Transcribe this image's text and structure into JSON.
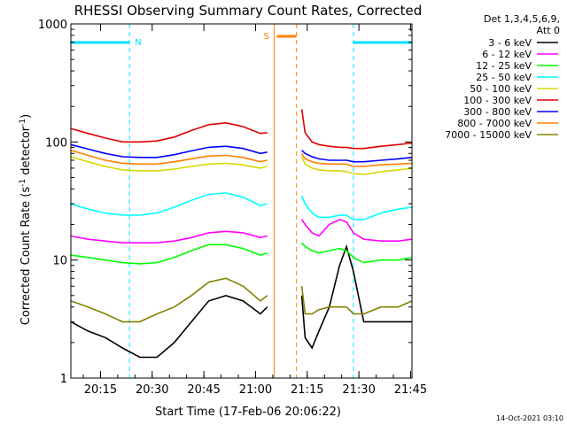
{
  "chart_data": {
    "type": "line",
    "title": "RHESSI Observing Summary Count Rates, Corrected",
    "xlabel": "Start Time (17-Feb-06 20:06:22)",
    "ylabel_parts": [
      "Corrected Count Rate (s",
      "-1",
      " detector",
      "-1",
      ")"
    ],
    "yscale": "log",
    "ylim": [
      1,
      1000
    ],
    "xlim_minutes_after_start": [
      0,
      99
    ],
    "x_tick_labels": [
      "20:15",
      "20:30",
      "20:45",
      "21:00",
      "21:15",
      "21:30",
      "21:45"
    ],
    "x_tick_minutes": [
      8.6,
      23.6,
      38.6,
      53.6,
      68.6,
      83.6,
      98.6
    ],
    "y_tick_labels": [
      "1",
      "10",
      "100",
      "1000"
    ],
    "y_tick_values": [
      1,
      10,
      100,
      1000
    ],
    "legend_header": [
      "Det 1,3,4,5,6,9,",
      "Att 0"
    ],
    "legend_position": "top-right",
    "timestamp": "14-Oct-2021 03:10",
    "annotations": [
      {
        "label": "N",
        "kind": "night",
        "segments_minutes": [
          [
            0,
            17
          ],
          [
            82,
            99
          ]
        ],
        "color": "#00e0ff"
      },
      {
        "label": "S",
        "kind": "saa",
        "segments_minutes": [
          [
            59,
            65.5
          ]
        ],
        "color": "#ff8000"
      }
    ],
    "series": [
      {
        "name": "3 - 6 keV",
        "color": "#000000",
        "x": [
          0,
          5,
          10,
          15,
          20,
          25,
          30,
          35,
          40,
          45,
          50,
          55,
          57,
          60,
          62,
          65,
          66,
          67,
          68,
          70,
          72,
          75,
          78,
          80,
          82,
          85,
          90,
          95,
          99
        ],
        "y": [
          3,
          2.5,
          2.2,
          1.8,
          1.5,
          1.5,
          2,
          3,
          4.5,
          5,
          4.5,
          3.5,
          4,
          null,
          null,
          null,
          null,
          5,
          2.2,
          1.8,
          2.5,
          4,
          9,
          13,
          8,
          3,
          3,
          3,
          3
        ]
      },
      {
        "name": "6 - 12 keV",
        "color": "#ff00ff",
        "x": [
          0,
          5,
          10,
          15,
          20,
          25,
          30,
          35,
          40,
          45,
          50,
          55,
          57,
          60,
          62,
          65,
          66,
          67,
          68,
          70,
          72,
          75,
          78,
          80,
          82,
          85,
          90,
          95,
          99
        ],
        "y": [
          16,
          15,
          14.5,
          14,
          14,
          14,
          14.5,
          15.5,
          17,
          17.5,
          17,
          15.5,
          16,
          null,
          null,
          null,
          null,
          22,
          20,
          17,
          16,
          20,
          22,
          21,
          17,
          15,
          14.5,
          14.5,
          15
        ]
      },
      {
        "name": "12 - 25 keV",
        "color": "#00ff00",
        "x": [
          0,
          5,
          10,
          15,
          20,
          25,
          30,
          35,
          40,
          45,
          50,
          55,
          57,
          60,
          62,
          65,
          66,
          67,
          68,
          70,
          72,
          75,
          78,
          80,
          82,
          85,
          90,
          95,
          99
        ],
        "y": [
          11,
          10.5,
          10,
          9.5,
          9.3,
          9.5,
          10.5,
          12,
          13.5,
          13.5,
          12.5,
          11,
          11.5,
          null,
          null,
          null,
          null,
          14,
          13,
          12,
          11.5,
          12,
          12.5,
          12,
          10.5,
          9.5,
          10,
          10,
          10.5
        ]
      },
      {
        "name": "25 - 50 keV",
        "color": "#00ffff",
        "x": [
          0,
          5,
          10,
          15,
          20,
          25,
          30,
          35,
          40,
          45,
          50,
          55,
          57,
          60,
          62,
          65,
          66,
          67,
          68,
          70,
          72,
          75,
          78,
          80,
          82,
          85,
          90,
          95,
          99
        ],
        "y": [
          30,
          27,
          25,
          24,
          24,
          25,
          28,
          32,
          36,
          37,
          34,
          29,
          30,
          null,
          null,
          null,
          null,
          35,
          30,
          25,
          23,
          23,
          24,
          24,
          22,
          22,
          25,
          27,
          28
        ]
      },
      {
        "name": "50 - 100 keV",
        "color": "#d8d800",
        "x": [
          0,
          5,
          10,
          15,
          20,
          25,
          30,
          35,
          40,
          45,
          50,
          55,
          57,
          60,
          62,
          65,
          66,
          67,
          68,
          70,
          72,
          75,
          78,
          80,
          82,
          85,
          90,
          95,
          99
        ],
        "y": [
          75,
          68,
          62,
          58,
          57,
          57,
          59,
          62,
          65,
          66,
          64,
          60,
          62,
          null,
          null,
          null,
          null,
          75,
          65,
          60,
          58,
          57,
          57,
          56,
          54,
          53,
          56,
          58,
          60
        ]
      },
      {
        "name": "100 - 300 keV",
        "color": "#e00000",
        "x": [
          0,
          5,
          10,
          15,
          20,
          25,
          30,
          35,
          40,
          45,
          50,
          55,
          57,
          60,
          62,
          65,
          66,
          67,
          68,
          70,
          72,
          75,
          78,
          80,
          82,
          85,
          90,
          95,
          99
        ],
        "y": [
          130,
          118,
          108,
          100,
          100,
          102,
          110,
          125,
          140,
          145,
          135,
          118,
          120,
          null,
          null,
          null,
          null,
          190,
          120,
          100,
          95,
          92,
          90,
          90,
          88,
          88,
          92,
          95,
          98
        ]
      },
      {
        "name": "300 - 800 keV",
        "color": "#0000ff",
        "x": [
          0,
          5,
          10,
          15,
          20,
          25,
          30,
          35,
          40,
          45,
          50,
          55,
          57,
          60,
          62,
          65,
          66,
          67,
          68,
          70,
          72,
          75,
          78,
          80,
          82,
          85,
          90,
          95,
          99
        ],
        "y": [
          95,
          87,
          80,
          75,
          74,
          74,
          78,
          84,
          90,
          92,
          88,
          80,
          82,
          null,
          null,
          null,
          null,
          85,
          80,
          75,
          72,
          70,
          70,
          70,
          68,
          68,
          70,
          72,
          74
        ]
      },
      {
        "name": "800 - 7000 keV",
        "color": "#ff8000",
        "x": [
          0,
          5,
          10,
          15,
          20,
          25,
          30,
          35,
          40,
          45,
          50,
          55,
          57,
          60,
          62,
          65,
          66,
          67,
          68,
          70,
          72,
          75,
          78,
          80,
          82,
          85,
          90,
          95,
          99
        ],
        "y": [
          85,
          77,
          70,
          66,
          65,
          65,
          68,
          72,
          76,
          77,
          74,
          68,
          70,
          null,
          null,
          null,
          null,
          80,
          72,
          68,
          66,
          65,
          65,
          65,
          62,
          62,
          64,
          65,
          66
        ]
      },
      {
        "name": "7000 - 15000 keV",
        "color": "#808000",
        "x": [
          0,
          5,
          10,
          15,
          20,
          25,
          30,
          35,
          40,
          45,
          50,
          55,
          57,
          60,
          62,
          65,
          66,
          67,
          68,
          70,
          72,
          75,
          78,
          80,
          82,
          85,
          90,
          95,
          99
        ],
        "y": [
          4.5,
          4,
          3.5,
          3,
          3,
          3.5,
          4,
          5,
          6.5,
          7,
          6,
          4.5,
          5,
          null,
          null,
          null,
          null,
          6,
          3.5,
          3.5,
          3.8,
          4,
          4,
          4,
          3.5,
          3.5,
          4,
          4,
          4.5
        ]
      }
    ]
  }
}
